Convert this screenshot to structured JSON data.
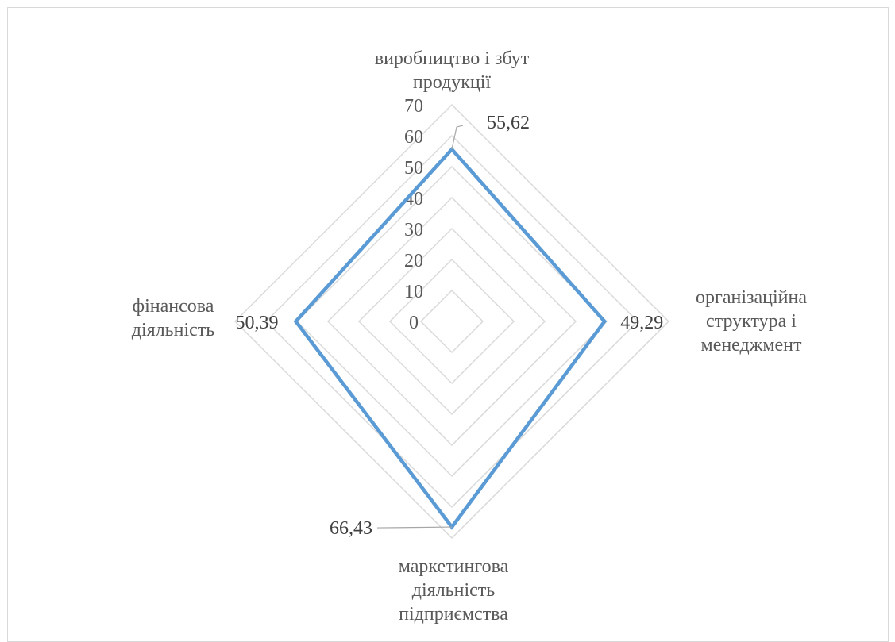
{
  "chart_data": {
    "type": "radar",
    "title": "",
    "categories": [
      [
        "виробництво і збут",
        "продукції"
      ],
      [
        "організаційна",
        "структура і",
        "менеджмент"
      ],
      [
        "маркетингова",
        "діяльність",
        "підприємства"
      ],
      [
        "фінансова",
        "діяльність"
      ]
    ],
    "series": [
      {
        "values": [
          55.62,
          49.29,
          66.43,
          50.39
        ],
        "value_labels": [
          "55,62",
          "49,29",
          "66,43",
          "50,39"
        ],
        "color": "#5b9bd5"
      }
    ],
    "rlim": [
      0,
      70
    ],
    "ticks": [
      0,
      10,
      20,
      30,
      40,
      50,
      60,
      70
    ],
    "tick_labels": [
      "0",
      "10",
      "20",
      "30",
      "40",
      "50",
      "60",
      "70"
    ],
    "grid": true,
    "gridlines_color": "#d9d9d9"
  }
}
